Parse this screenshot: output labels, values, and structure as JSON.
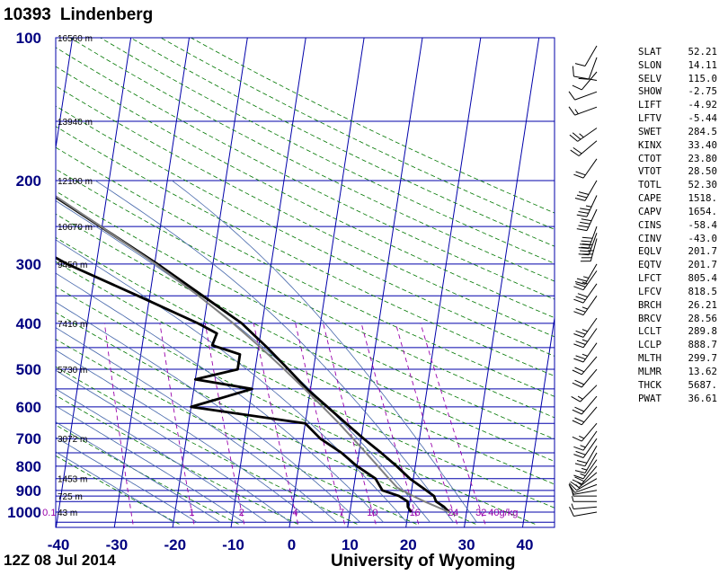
{
  "header": {
    "station_id": "10393",
    "station_name": "Lindenberg"
  },
  "footer": {
    "datetime": "12Z 08 Jul 2014",
    "source": "University of Wyoming"
  },
  "indices": [
    {
      "name": "SLAT",
      "value": "52.21"
    },
    {
      "name": "SLON",
      "value": "14.11"
    },
    {
      "name": "SELV",
      "value": "115.0"
    },
    {
      "name": "SHOW",
      "value": "-2.75"
    },
    {
      "name": "LIFT",
      "value": "-4.92"
    },
    {
      "name": "LFTV",
      "value": "-5.44"
    },
    {
      "name": "SWET",
      "value": "284.5"
    },
    {
      "name": "KINX",
      "value": "33.40"
    },
    {
      "name": "CTOT",
      "value": "23.80"
    },
    {
      "name": "VTOT",
      "value": "28.50"
    },
    {
      "name": "TOTL",
      "value": "52.30"
    },
    {
      "name": "CAPE",
      "value": "1518."
    },
    {
      "name": "CAPV",
      "value": "1654."
    },
    {
      "name": "CINS",
      "value": "-58.4"
    },
    {
      "name": "CINV",
      "value": "-43.0"
    },
    {
      "name": "EQLV",
      "value": "201.7"
    },
    {
      "name": "EQTV",
      "value": "201.7"
    },
    {
      "name": "LFCT",
      "value": "805.4"
    },
    {
      "name": "LFCV",
      "value": "818.5"
    },
    {
      "name": "BRCH",
      "value": "26.21"
    },
    {
      "name": "BRCV",
      "value": "28.56"
    },
    {
      "name": "LCLT",
      "value": "289.8"
    },
    {
      "name": "LCLP",
      "value": "888.7"
    },
    {
      "name": "MLTH",
      "value": "299.7"
    },
    {
      "name": "MLMR",
      "value": "13.62"
    },
    {
      "name": "THCK",
      "value": "5687."
    },
    {
      "name": "PWAT",
      "value": "36.61"
    }
  ],
  "chart_data": {
    "type": "skew-t log-p sounding",
    "x_axis": {
      "ticks": [
        -40,
        -30,
        -20,
        -10,
        0,
        10,
        20,
        30,
        40
      ],
      "range": [
        -40,
        45
      ],
      "unit": "°C"
    },
    "y_axis": {
      "scale": "log",
      "ticks": [
        100,
        200,
        300,
        400,
        500,
        600,
        700,
        800,
        900,
        1000
      ],
      "range": [
        1050,
        100
      ],
      "unit": "hPa"
    },
    "isobars": [
      1050,
      1000,
      950,
      925,
      900,
      850,
      800,
      750,
      700,
      650,
      600,
      550,
      500,
      450,
      400,
      350,
      300,
      250,
      200,
      150,
      100
    ],
    "height_labels": [
      {
        "p": 1000,
        "text": "43 m"
      },
      {
        "p": 925,
        "text": "725 m"
      },
      {
        "p": 850,
        "text": "1453 m"
      },
      {
        "p": 700,
        "text": "3072 m"
      },
      {
        "p": 500,
        "text": "5730 m"
      },
      {
        "p": 400,
        "text": "7410 m"
      },
      {
        "p": 300,
        "text": "9450 m"
      },
      {
        "p": 250,
        "text": "10670 m"
      },
      {
        "p": 200,
        "text": "12100 m"
      },
      {
        "p": 150,
        "text": "13940 m"
      },
      {
        "p": 100,
        "text": "16560 m"
      }
    ],
    "mixing_ratio_lines": [
      0.1,
      0.4,
      1,
      2,
      4,
      7,
      10,
      16,
      24,
      32
    ],
    "mixing_ratio_labels": [
      {
        "w": 0.1,
        "text": "0.1"
      },
      {
        "w": 1,
        "text": "1"
      },
      {
        "w": 2,
        "text": "2"
      },
      {
        "w": 4,
        "text": "4"
      },
      {
        "w": 7,
        "text": "7"
      },
      {
        "w": 10,
        "text": "10"
      },
      {
        "w": 16,
        "text": "16"
      },
      {
        "w": 24,
        "text": "24"
      },
      {
        "w": 32,
        "text": "32"
      },
      {
        "w": 40,
        "text": "40g/kg"
      }
    ],
    "dry_adiabats_K": [
      250,
      260,
      270,
      280,
      290,
      300,
      310,
      320,
      330,
      340,
      350,
      360,
      370,
      380,
      390,
      400,
      410,
      420,
      430,
      440,
      450,
      460,
      470
    ],
    "moist_adiabats_C": [
      -20,
      -16,
      -12,
      -8,
      -4,
      0,
      4,
      8,
      12,
      16,
      20,
      24,
      28,
      32
    ],
    "series": [
      {
        "role": "temperature",
        "points": [
          {
            "p": 1000,
            "t": 27.0
          },
          {
            "p": 975,
            "t": 26.0
          },
          {
            "p": 950,
            "t": 24.5
          },
          {
            "p": 925,
            "t": 24.0
          },
          {
            "p": 900,
            "t": 22.5
          },
          {
            "p": 850,
            "t": 19.4
          },
          {
            "p": 800,
            "t": 16.8
          },
          {
            "p": 750,
            "t": 13.8
          },
          {
            "p": 700,
            "t": 10.4
          },
          {
            "p": 650,
            "t": 7.0
          },
          {
            "p": 600,
            "t": 3.4
          },
          {
            "p": 550,
            "t": -0.6
          },
          {
            "p": 500,
            "t": -4.3
          },
          {
            "p": 450,
            "t": -8.5
          },
          {
            "p": 400,
            "t": -13.5
          },
          {
            "p": 350,
            "t": -20.9
          },
          {
            "p": 300,
            "t": -29.5
          },
          {
            "p": 250,
            "t": -40.3
          },
          {
            "p": 200,
            "t": -53.5
          },
          {
            "p": 175,
            "t": -57.5
          },
          {
            "p": 150,
            "t": -57.5
          },
          {
            "p": 130,
            "t": -56.5
          },
          {
            "p": 115,
            "t": -59.0
          },
          {
            "p": 100,
            "t": -60.5
          }
        ]
      },
      {
        "role": "dewpoint",
        "points": [
          {
            "p": 1000,
            "t": 20.5
          },
          {
            "p": 975,
            "t": 19.8
          },
          {
            "p": 950,
            "t": 19.6
          },
          {
            "p": 925,
            "t": 18.0
          },
          {
            "p": 900,
            "t": 15.0
          },
          {
            "p": 850,
            "t": 13.5
          },
          {
            "p": 800,
            "t": 10.0
          },
          {
            "p": 750,
            "t": 7.0
          },
          {
            "p": 700,
            "t": 3.0
          },
          {
            "p": 650,
            "t": 0.0
          },
          {
            "p": 600,
            "t": -20.0
          },
          {
            "p": 550,
            "t": -10.0
          },
          {
            "p": 525,
            "t": -20.0
          },
          {
            "p": 500,
            "t": -13.0
          },
          {
            "p": 465,
            "t": -13.0
          },
          {
            "p": 445,
            "t": -18.0
          },
          {
            "p": 420,
            "t": -17.5
          },
          {
            "p": 400,
            "t": -21.0
          },
          {
            "p": 350,
            "t": -32.0
          },
          {
            "p": 300,
            "t": -45.0
          },
          {
            "p": 250,
            "t": -57.5
          },
          {
            "p": 200,
            "t": -63.0
          },
          {
            "p": 150,
            "t": -78.5
          },
          {
            "p": 140,
            "t": -79.5
          },
          {
            "p": 120,
            "t": -82.0
          },
          {
            "p": 100,
            "t": -86.0
          }
        ]
      },
      {
        "role": "parcel",
        "points": [
          {
            "p": 1000,
            "t": 27.0
          },
          {
            "p": 950,
            "t": 22.5
          },
          {
            "p": 925,
            "t": 20.4
          },
          {
            "p": 888.7,
            "t": 17.5
          },
          {
            "p": 850,
            "t": 15.8
          },
          {
            "p": 800,
            "t": 13.6
          },
          {
            "p": 750,
            "t": 11.2
          },
          {
            "p": 700,
            "t": 8.6
          },
          {
            "p": 650,
            "t": 5.8
          },
          {
            "p": 600,
            "t": 2.6
          },
          {
            "p": 550,
            "t": -1.0
          },
          {
            "p": 500,
            "t": -5.0
          },
          {
            "p": 450,
            "t": -9.6
          },
          {
            "p": 400,
            "t": -15.0
          },
          {
            "p": 350,
            "t": -21.6
          },
          {
            "p": 300,
            "t": -29.8
          },
          {
            "p": 250,
            "t": -40.2
          },
          {
            "p": 200,
            "t": -53.2
          },
          {
            "p": 150,
            "t": -68.0
          },
          {
            "p": 100,
            "t": -86.0
          }
        ]
      }
    ],
    "wind_barbs": [
      {
        "p": 1000,
        "dir": 260,
        "spd": 10
      },
      {
        "p": 975,
        "dir": 265,
        "spd": 5
      },
      {
        "p": 950,
        "dir": 270,
        "spd": 5
      },
      {
        "p": 925,
        "dir": 270,
        "spd": 5
      },
      {
        "p": 900,
        "dir": 260,
        "spd": 10
      },
      {
        "p": 875,
        "dir": 250,
        "spd": 10
      },
      {
        "p": 850,
        "dir": 240,
        "spd": 15
      },
      {
        "p": 825,
        "dir": 230,
        "spd": 15
      },
      {
        "p": 800,
        "dir": 220,
        "spd": 20
      },
      {
        "p": 775,
        "dir": 215,
        "spd": 15
      },
      {
        "p": 750,
        "dir": 210,
        "spd": 15
      },
      {
        "p": 725,
        "dir": 210,
        "spd": 20
      },
      {
        "p": 700,
        "dir": 215,
        "spd": 20
      },
      {
        "p": 675,
        "dir": 215,
        "spd": 15
      },
      {
        "p": 650,
        "dir": 220,
        "spd": 15
      },
      {
        "p": 600,
        "dir": 220,
        "spd": 20
      },
      {
        "p": 570,
        "dir": 220,
        "spd": 20
      },
      {
        "p": 540,
        "dir": 225,
        "spd": 15
      },
      {
        "p": 500,
        "dir": 220,
        "spd": 20
      },
      {
        "p": 470,
        "dir": 220,
        "spd": 20
      },
      {
        "p": 440,
        "dir": 215,
        "spd": 25
      },
      {
        "p": 410,
        "dir": 215,
        "spd": 25
      },
      {
        "p": 390,
        "dir": 215,
        "spd": 25
      },
      {
        "p": 350,
        "dir": 215,
        "spd": 25
      },
      {
        "p": 330,
        "dir": 215,
        "spd": 30
      },
      {
        "p": 310,
        "dir": 215,
        "spd": 25
      },
      {
        "p": 300,
        "dir": 210,
        "spd": 25
      },
      {
        "p": 265,
        "dir": 195,
        "spd": 35
      },
      {
        "p": 258,
        "dir": 200,
        "spd": 40
      },
      {
        "p": 250,
        "dir": 200,
        "spd": 40
      },
      {
        "p": 230,
        "dir": 205,
        "spd": 40
      },
      {
        "p": 215,
        "dir": 205,
        "spd": 35
      },
      {
        "p": 200,
        "dir": 210,
        "spd": 30
      },
      {
        "p": 180,
        "dir": 215,
        "spd": 20
      },
      {
        "p": 165,
        "dir": 230,
        "spd": 20
      },
      {
        "p": 155,
        "dir": 235,
        "spd": 25
      },
      {
        "p": 140,
        "dir": 250,
        "spd": 15
      },
      {
        "p": 130,
        "dir": 250,
        "spd": 10
      },
      {
        "p": 123,
        "dir": 280,
        "spd": 10
      },
      {
        "p": 118,
        "dir": 220,
        "spd": 10
      },
      {
        "p": 110,
        "dir": 200,
        "spd": 10
      },
      {
        "p": 104,
        "dir": 210,
        "spd": 10
      }
    ],
    "colors": {
      "isobar": "#0000aa",
      "isotherm": "#0000aa",
      "axis_labels": "#000080",
      "dry_adiabat": "#007700",
      "moist_adiabat": "#4466aa",
      "mixing_ratio": "#9900aa",
      "temperature": "#000000",
      "dewpoint": "#000000",
      "parcel": "#808080"
    }
  }
}
